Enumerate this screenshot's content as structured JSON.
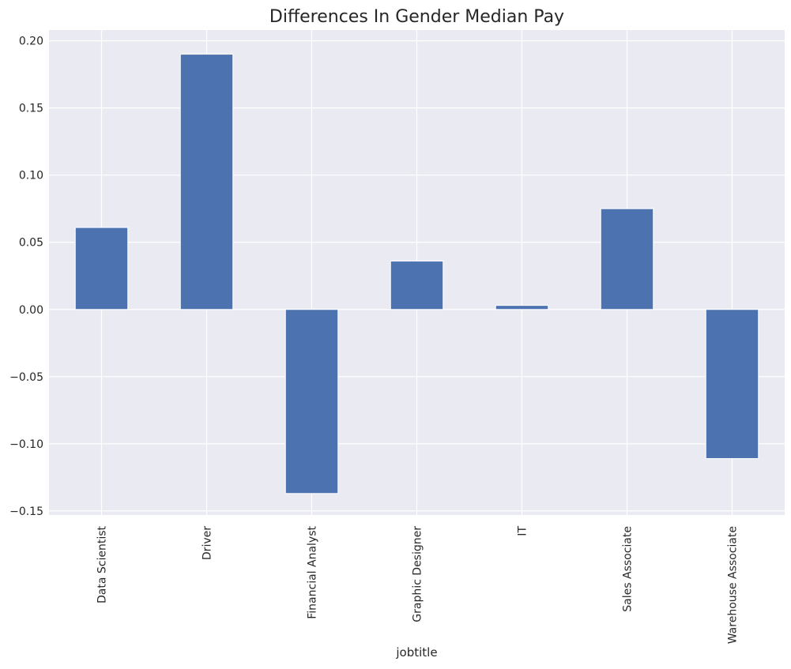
{
  "chart_data": {
    "type": "bar",
    "title": "Differences In Gender Median Pay",
    "xlabel": "jobtitle",
    "ylabel": "",
    "categories": [
      "Data Scientist",
      "Driver",
      "Financial Analyst",
      "Graphic Designer",
      "IT",
      "Sales Associate",
      "Warehouse Associate"
    ],
    "values": [
      0.061,
      0.19,
      -0.137,
      0.036,
      0.003,
      0.075,
      -0.111
    ],
    "ylim": [
      -0.153,
      0.208
    ],
    "yticks": [
      -0.15,
      -0.1,
      -0.05,
      0.0,
      0.05,
      0.1,
      0.15,
      0.2
    ],
    "ytick_labels": [
      "−0.15",
      "−0.10",
      "−0.05",
      "0.00",
      "0.05",
      "0.10",
      "0.15",
      "0.20"
    ],
    "grid": true,
    "colors": {
      "bar": "#4c72b0",
      "background": "#eaeaf2",
      "grid": "#ffffff"
    }
  }
}
